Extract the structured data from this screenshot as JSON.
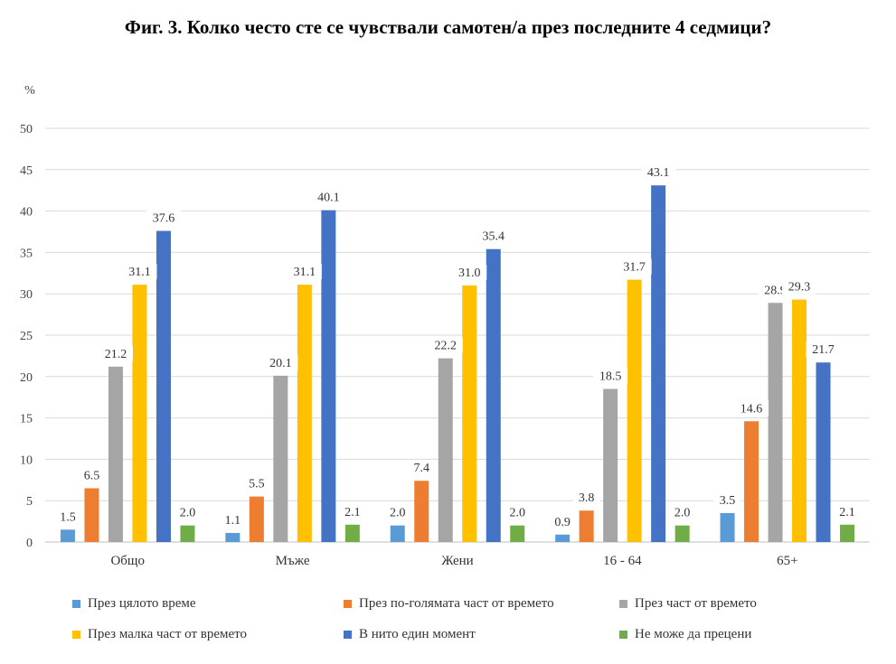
{
  "title": "Фиг. 3. Колко често сте се чувствали самотен/а през последните 4 седмици?",
  "chart_data": {
    "type": "bar",
    "ylabel": "%",
    "ylim": [
      0,
      50
    ],
    "yticks": [
      0,
      5,
      10,
      15,
      20,
      25,
      30,
      35,
      40,
      45,
      50
    ],
    "grid": true,
    "legend_position": "bottom",
    "categories": [
      "Общо",
      "Мъже",
      "Жени",
      "16 - 64",
      "65+"
    ],
    "series": [
      {
        "name": "През цялото време",
        "color": "#5B9BD5",
        "values": [
          1.5,
          1.1,
          2.0,
          0.9,
          3.5
        ],
        "labels": [
          "1.5",
          "1.1",
          "2.0",
          "0.9",
          "3.5"
        ]
      },
      {
        "name": "През по-голямата част от времето",
        "color": "#ED7D31",
        "values": [
          6.5,
          5.5,
          7.4,
          3.8,
          14.6
        ],
        "labels": [
          "6.5",
          "5.5",
          "7.4",
          "3.8",
          "14.6"
        ]
      },
      {
        "name": "През част от времето",
        "color": "#A5A5A5",
        "values": [
          21.2,
          20.1,
          22.2,
          18.5,
          28.9
        ],
        "labels": [
          "21.2",
          "20.1",
          "22.2",
          "18.5",
          "28.9"
        ]
      },
      {
        "name": "През малка част от времето",
        "color": "#FFC000",
        "values": [
          31.1,
          31.1,
          31.0,
          31.7,
          29.3
        ],
        "labels": [
          "31.1",
          "31.1",
          "31.0",
          "31.7",
          "29.3"
        ]
      },
      {
        "name": "В нито един момент",
        "color": "#4472C4",
        "values": [
          37.6,
          40.1,
          35.4,
          43.1,
          21.7
        ],
        "labels": [
          "37.6",
          "40.1",
          "35.4",
          "43.1",
          "21.7"
        ]
      },
      {
        "name": "Не може да прецени",
        "color": "#70AD47",
        "values": [
          2.0,
          2.1,
          2.0,
          2.0,
          2.1
        ],
        "labels": [
          "2.0",
          "2.1",
          "2.0",
          "2.0",
          "2.1"
        ]
      }
    ]
  }
}
